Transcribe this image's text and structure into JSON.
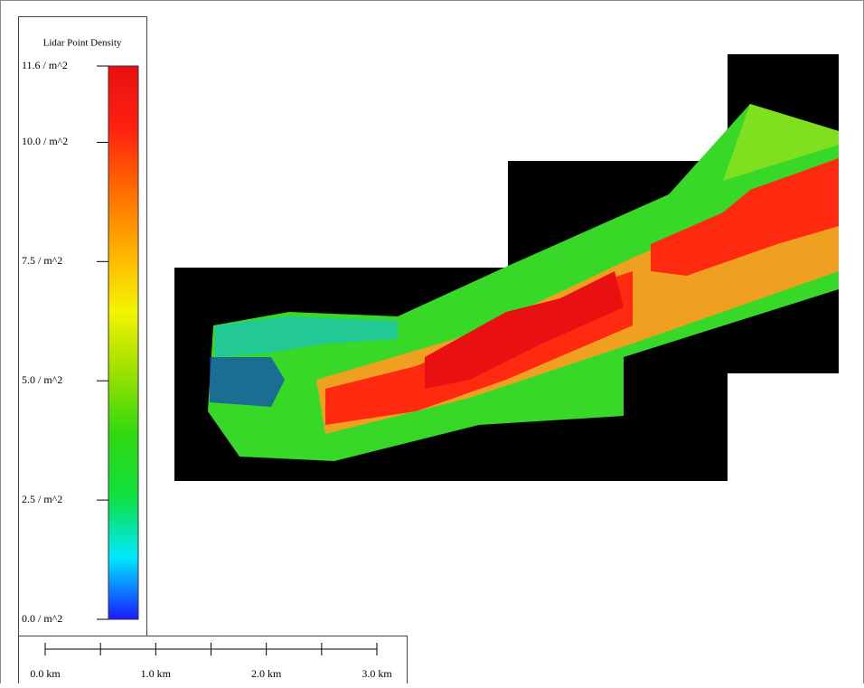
{
  "legend": {
    "title": "Lidar Point Density",
    "min": 0,
    "max": 11.6,
    "colors": [
      "#1a1aff",
      "#00e8ff",
      "#10e040",
      "#30d810",
      "#9ae000",
      "#f4f400",
      "#ffb000",
      "#ff6a00",
      "#ff2010",
      "#e81010"
    ],
    "ticks": [
      {
        "value": 11.6,
        "label": "11.6 / m^2"
      },
      {
        "value": 10.0,
        "label": "10.0 / m^2"
      },
      {
        "value": 7.5,
        "label": "7.5 / m^2"
      },
      {
        "value": 5.0,
        "label": "5.0 / m^2"
      },
      {
        "value": 2.5,
        "label": "2.5 / m^2"
      },
      {
        "value": 0.0,
        "label": "0.0 / m^2"
      }
    ]
  },
  "scale_bar": {
    "max": 3.0,
    "ticks": [
      0,
      0.5,
      1.0,
      1.5,
      2.0,
      2.5,
      3.0
    ],
    "labels": [
      {
        "value": 0,
        "label": "0.0 km"
      },
      {
        "value": 1,
        "label": "1.0 km"
      },
      {
        "value": 2,
        "label": "2.0 km"
      },
      {
        "value": 3,
        "label": "3.0 km"
      }
    ]
  }
}
